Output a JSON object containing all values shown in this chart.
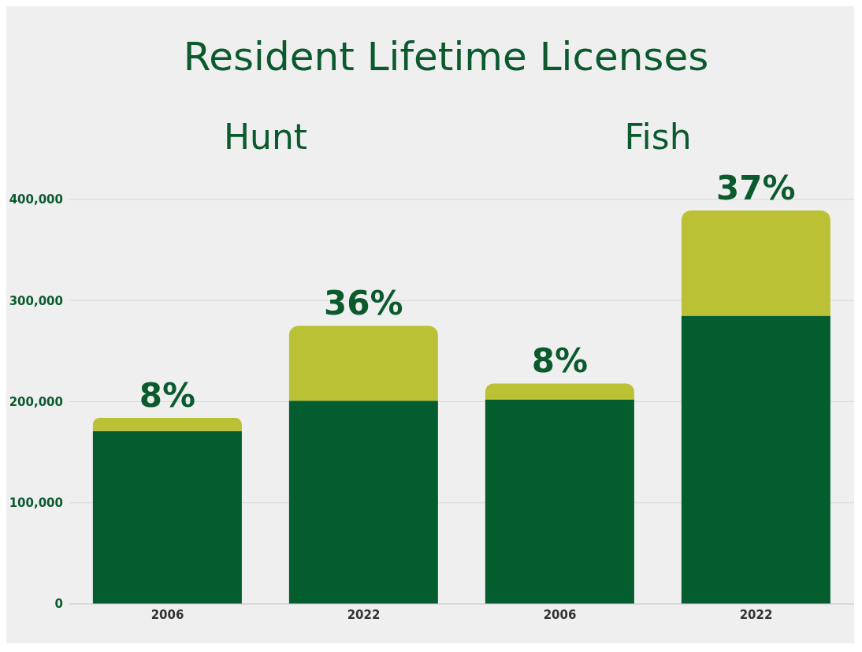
{
  "chart_data": {
    "type": "bar",
    "title": "Resident Lifetime Licenses",
    "annotations": [
      "Hunt",
      "Fish",
      "8%",
      "36%",
      "8%",
      "37%"
    ],
    "categories": [
      "2006",
      "2022",
      "2006",
      "2022"
    ],
    "stacked": true,
    "series": [
      {
        "color": "#045d2e",
        "values": [
          171000,
          201000,
          202000,
          285000
        ]
      },
      {
        "color": "#bbc135",
        "values": [
          13000,
          74000,
          16000,
          104000
        ]
      }
    ],
    "ylim": [
      0,
      400000
    ],
    "yticks": [
      0,
      {
        "value": 100000,
        "label": "100,000"
      },
      {
        "value": 200000,
        "label": "200,000"
      },
      {
        "value": 300000,
        "label": "300,000"
      },
      {
        "value": 400000,
        "label": "400,000"
      }
    ],
    "grid": "y"
  }
}
